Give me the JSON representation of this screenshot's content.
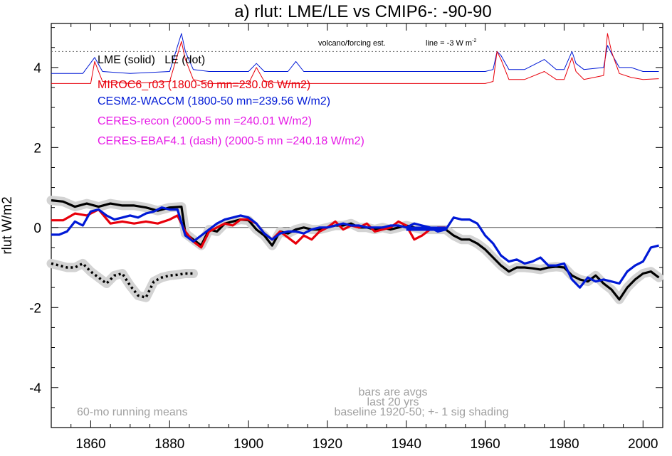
{
  "chart_data": {
    "type": "line",
    "title": "a) rlut: LME/LE vs CMIP6-: -90-90",
    "xlabel": "",
    "ylabel": "rlut W/m2",
    "xlim": [
      1850,
      2005
    ],
    "ylim": [
      -5,
      5.1
    ],
    "x_ticks": [
      1860,
      1880,
      1900,
      1920,
      1940,
      1960,
      1980,
      2000
    ],
    "y_ticks": [
      -4,
      -2,
      0,
      2,
      4
    ],
    "grid": false,
    "zero_line": 0,
    "legend": {
      "placement": "top-left",
      "entries": [
        {
          "label": "LME (solid)   LE (dot)",
          "color": "#000000"
        },
        {
          "label": "MIROC6_r03 (1800-50 mn=230.06 W/m2)",
          "color": "#e8000b"
        },
        {
          "label": "CESM2-WACCM (1800-50 mn=239.56 W/m2)",
          "color": "#0019d6"
        },
        {
          "label": "CERES-recon (2000-5 mn =240.01 W/m2)",
          "color": "#e619e6"
        },
        {
          "label": "CERES-EBAF4.1 (dash) (2000-5 mn =240.18 W/m2)",
          "color": "#e619e6"
        }
      ]
    },
    "annotations": {
      "volcano_label": "volcano/forcing est.",
      "volcano_line_label": "line = -3 W m",
      "volcano_line_sup": "-2",
      "volcano_line_y": 4.4,
      "bars_note_1": "bars are avgs",
      "bars_note_2": "last 20 yrs",
      "baseline_note": "baseline 1920-50; +- 1 sig shading",
      "running_note": "60-mo running means"
    },
    "colors": {
      "lme": "#000000",
      "miroc": "#e8000b",
      "cesm": "#0019d6",
      "ceres": "#e619e6",
      "shade": "#d3d3d3",
      "note": "#a0a0a0"
    },
    "series": [
      {
        "name": "LME (solid)",
        "color": "#000000",
        "x": [
          1850,
          1853,
          1856,
          1859,
          1862,
          1865,
          1868,
          1871,
          1874,
          1877,
          1880,
          1883,
          1884,
          1886,
          1888,
          1890,
          1892,
          1894,
          1896,
          1898,
          1900,
          1902,
          1904,
          1906,
          1908,
          1910,
          1912,
          1914,
          1916,
          1918,
          1920,
          1922,
          1924,
          1926,
          1928,
          1930,
          1932,
          1934,
          1936,
          1938,
          1940,
          1942,
          1944,
          1946,
          1948,
          1950,
          1952,
          1954,
          1956,
          1958,
          1960,
          1962,
          1964,
          1966,
          1968,
          1970,
          1972,
          1974,
          1976,
          1978,
          1980,
          1982,
          1984,
          1986,
          1988,
          1990,
          1992,
          1994,
          1996,
          1998,
          2000,
          2002,
          2004
        ],
        "y": [
          0.68,
          0.65,
          0.52,
          0.6,
          0.52,
          0.6,
          0.55,
          0.55,
          0.5,
          0.42,
          0.5,
          0.52,
          -0.15,
          -0.3,
          -0.45,
          -0.05,
          -0.1,
          0.1,
          0.15,
          0.2,
          0.18,
          -0.05,
          -0.2,
          -0.45,
          -0.1,
          -0.15,
          -0.05,
          0.0,
          -0.05,
          -0.05,
          0.0,
          0.05,
          0.05,
          0.1,
          0.0,
          0.0,
          -0.05,
          0.0,
          -0.05,
          0.0,
          0.05,
          0.0,
          -0.05,
          -0.05,
          -0.05,
          -0.05,
          -0.2,
          -0.3,
          -0.3,
          -0.4,
          -0.55,
          -0.75,
          -0.95,
          -1.1,
          -1.0,
          -1.0,
          -1.02,
          -1.05,
          -1.0,
          -0.98,
          -1.0,
          -1.2,
          -1.3,
          -1.35,
          -1.2,
          -1.4,
          -1.55,
          -1.8,
          -1.5,
          -1.3,
          -1.15,
          -1.1,
          -1.25
        ]
      },
      {
        "name": "LE (dot)",
        "color": "#000000",
        "x": [
          1850,
          1852,
          1854,
          1856,
          1858,
          1860,
          1862,
          1864,
          1866,
          1868,
          1870,
          1872,
          1874,
          1876,
          1878,
          1880,
          1882,
          1884,
          1886
        ],
        "y": [
          -0.9,
          -0.95,
          -1.0,
          -1.0,
          -0.9,
          -1.1,
          -1.25,
          -1.4,
          -1.2,
          -1.15,
          -1.45,
          -1.7,
          -1.75,
          -1.35,
          -1.25,
          -1.2,
          -1.18,
          -1.15,
          -1.15
        ]
      },
      {
        "name": "MIROC6_r03",
        "color": "#e8000b",
        "x": [
          1850,
          1853,
          1856,
          1859,
          1862,
          1865,
          1868,
          1871,
          1874,
          1877,
          1880,
          1882,
          1884,
          1886,
          1888,
          1890,
          1892,
          1894,
          1896,
          1898,
          1900,
          1902,
          1904,
          1906,
          1908,
          1910,
          1912,
          1914,
          1916,
          1918,
          1920,
          1922,
          1924,
          1926,
          1928,
          1930,
          1932,
          1934,
          1936,
          1938,
          1940,
          1942,
          1944,
          1946,
          1948,
          1950
        ],
        "y": [
          0.18,
          0.18,
          0.35,
          0.3,
          0.45,
          0.1,
          0.15,
          0.1,
          0.15,
          0.1,
          0.2,
          0.3,
          -0.1,
          -0.35,
          -0.5,
          -0.1,
          0.0,
          0.1,
          0.05,
          0.2,
          0.2,
          0.1,
          -0.15,
          -0.3,
          -0.1,
          -0.25,
          -0.4,
          -0.2,
          -0.3,
          -0.1,
          0.0,
          0.15,
          -0.05,
          0.05,
          0.0,
          0.1,
          -0.1,
          -0.05,
          0.0,
          0.15,
          0.05,
          -0.3,
          -0.2,
          -0.05,
          0.0,
          0.0
        ]
      },
      {
        "name": "CESM2-WACCM",
        "color": "#0019d6",
        "x": [
          1850,
          1852,
          1854,
          1856,
          1858,
          1860,
          1862,
          1864,
          1866,
          1868,
          1870,
          1872,
          1874,
          1876,
          1878,
          1880,
          1882,
          1884,
          1886,
          1888,
          1890,
          1892,
          1894,
          1896,
          1898,
          1900,
          1902,
          1904,
          1906,
          1908,
          1910,
          1912,
          1914,
          1916,
          1918,
          1920,
          1922,
          1924,
          1926,
          1928,
          1930,
          1932,
          1934,
          1936,
          1938,
          1940,
          1942,
          1944,
          1946,
          1948,
          1950,
          1952,
          1954,
          1956,
          1958,
          1960,
          1962,
          1964,
          1966,
          1968,
          1970,
          1972,
          1974,
          1976,
          1978,
          1980,
          1982,
          1984,
          1986,
          1988,
          1990,
          1992,
          1994,
          1996,
          1998,
          2000,
          2002,
          2004
        ],
        "y": [
          -0.18,
          -0.18,
          -0.1,
          0.15,
          0.05,
          0.4,
          0.45,
          0.3,
          0.2,
          0.25,
          0.3,
          0.25,
          0.35,
          0.4,
          0.5,
          0.45,
          0.45,
          -0.2,
          -0.35,
          -0.2,
          -0.05,
          0.1,
          0.2,
          0.25,
          0.3,
          0.25,
          0.1,
          -0.15,
          -0.3,
          -0.15,
          -0.1,
          -0.1,
          -0.15,
          -0.05,
          0.0,
          0.0,
          0.05,
          0.1,
          0.05,
          0.05,
          0.0,
          0.0,
          0.0,
          0.05,
          0.05,
          0.0,
          0.1,
          0.05,
          0.0,
          -0.1,
          -0.05,
          0.25,
          0.2,
          0.2,
          0.1,
          -0.2,
          -0.4,
          -0.7,
          -0.85,
          -0.8,
          -0.9,
          -0.85,
          -0.75,
          -0.95,
          -0.95,
          -0.9,
          -1.3,
          -1.5,
          -1.25,
          -1.35,
          -1.3,
          -1.35,
          -1.4,
          -1.1,
          -0.95,
          -0.85,
          -0.5,
          -0.45
        ]
      }
    ],
    "forcing_series": [
      {
        "name": "volcano/forcing est. (CESM)",
        "color": "#0019d6",
        "x": [
          1850,
          1858,
          1861,
          1863,
          1870,
          1880,
          1883,
          1884,
          1886,
          1890,
          1900,
          1902,
          1904,
          1910,
          1912,
          1914,
          1920,
          1930,
          1940,
          1950,
          1960,
          1962,
          1963,
          1964,
          1966,
          1970,
          1975,
          1978,
          1980,
          1982,
          1983,
          1985,
          1990,
          1991,
          1992,
          1994,
          1997,
          2000,
          2004
        ],
        "y": [
          3.85,
          3.85,
          4.25,
          3.9,
          3.85,
          3.9,
          4.85,
          4.4,
          3.95,
          3.9,
          3.9,
          4.1,
          3.9,
          3.9,
          4.15,
          3.9,
          3.9,
          3.9,
          3.9,
          3.9,
          3.9,
          3.95,
          4.4,
          4.3,
          3.95,
          3.95,
          4.2,
          3.95,
          3.95,
          4.4,
          4.1,
          3.95,
          4.0,
          4.55,
          4.35,
          4.0,
          4.0,
          3.9,
          3.9
        ]
      },
      {
        "name": "volcano/forcing est. (MIROC)",
        "color": "#e8000b",
        "x": [
          1850,
          1860,
          1861,
          1863,
          1870,
          1880,
          1883,
          1884,
          1886,
          1890,
          1900,
          1902,
          1904,
          1910,
          1920,
          1930,
          1940,
          1950,
          1960,
          1962,
          1963,
          1964,
          1966,
          1970,
          1975,
          1978,
          1980,
          1982,
          1983,
          1985,
          1990,
          1991,
          1992,
          1994,
          1997,
          2000,
          2004
        ],
        "y": [
          3.6,
          3.6,
          4.15,
          3.65,
          3.6,
          3.65,
          4.65,
          4.2,
          3.7,
          3.6,
          3.6,
          4.0,
          3.65,
          3.6,
          3.6,
          3.6,
          3.6,
          3.6,
          3.6,
          3.65,
          4.4,
          4.2,
          3.7,
          3.7,
          3.9,
          3.7,
          3.7,
          4.25,
          3.9,
          3.7,
          3.8,
          4.85,
          4.4,
          3.85,
          3.75,
          3.7,
          3.72
        ]
      }
    ],
    "avg_bars": [
      {
        "name": "CESM2-WACCM avg",
        "color": "#0019d6",
        "x": [
          1940,
          1950
        ],
        "y": -0.03
      }
    ]
  }
}
